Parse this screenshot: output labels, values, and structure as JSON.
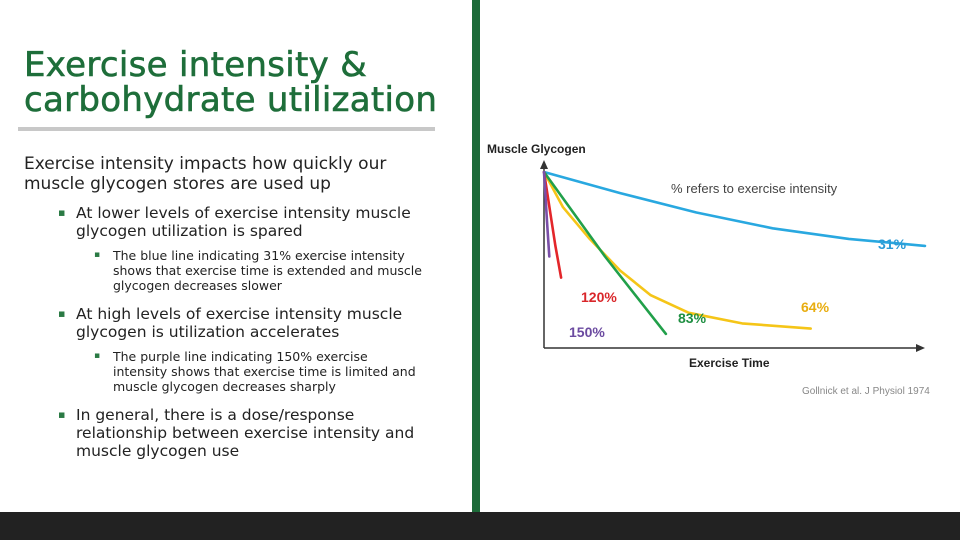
{
  "slide": {
    "title": "Exercise intensity & carbohydrate utilization",
    "subtitle": "Exercise intensity impacts how quickly our\nmuscle glycogen stores are used up",
    "bullets": [
      {
        "text": "At lower levels of exercise intensity muscle\nglycogen utilization is spared",
        "sub": [
          "The blue line indicating 31% exercise intensity\nshows that exercise time is extended and muscle\nglycogen decreases slower"
        ]
      },
      {
        "text": "At high levels of exercise intensity muscle\nglycogen is utilization accelerates",
        "sub": [
          "The purple line indicating 150% exercise\nintensity shows that exercise time is limited and\nmuscle glycogen decreases sharply"
        ]
      },
      {
        "text": "In general, there is a dose/response\nrelationship between exercise intensity and\nmuscle glycogen use",
        "sub": []
      }
    ]
  },
  "chart_data": {
    "type": "line",
    "ylabel": "Muscle Glycogen",
    "xlabel": "Exercise Time",
    "annotation": "% refers to exercise intensity",
    "citation": "Gollnick et al. J Physiol 1974",
    "axis_ticks": "none",
    "grid": false,
    "series": [
      {
        "name": "31%",
        "color": "#29a8e0",
        "label_color": "#2a9bd6",
        "points": [
          [
            0,
            100
          ],
          [
            0.2,
            88
          ],
          [
            0.4,
            77
          ],
          [
            0.6,
            68
          ],
          [
            0.8,
            62
          ],
          [
            1.0,
            58
          ]
        ]
      },
      {
        "name": "64%",
        "color": "#f5c518",
        "label_color": "#e8ad10",
        "points": [
          [
            0,
            100
          ],
          [
            0.05,
            80
          ],
          [
            0.12,
            62
          ],
          [
            0.2,
            44
          ],
          [
            0.28,
            30
          ],
          [
            0.38,
            20
          ],
          [
            0.52,
            14
          ],
          [
            0.7,
            11
          ]
        ]
      },
      {
        "name": "83%",
        "color": "#21a04a",
        "label_color": "#1f8f42",
        "points": [
          [
            0,
            100
          ],
          [
            0.08,
            76
          ],
          [
            0.16,
            52
          ],
          [
            0.24,
            30
          ],
          [
            0.32,
            8
          ]
        ]
      },
      {
        "name": "120%",
        "color": "#e3262a",
        "label_color": "#d9262a",
        "points": [
          [
            0,
            100
          ],
          [
            0.01,
            86
          ],
          [
            0.02,
            72
          ],
          [
            0.03,
            58
          ],
          [
            0.045,
            40
          ]
        ]
      },
      {
        "name": "150%",
        "color": "#7a4fa8",
        "label_color": "#6b4aa0",
        "points": [
          [
            0,
            100
          ],
          [
            0.003,
            90
          ],
          [
            0.008,
            72
          ],
          [
            0.014,
            52
          ]
        ]
      }
    ]
  }
}
